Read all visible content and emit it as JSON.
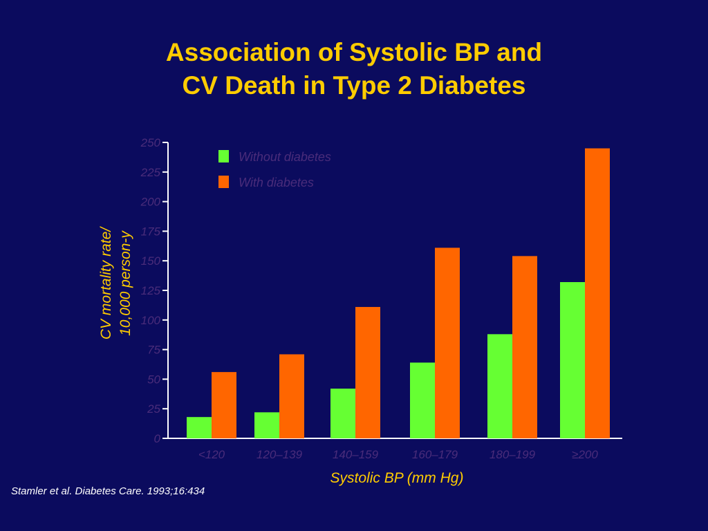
{
  "title_line1": "Association of Systolic BP and",
  "title_line2": "CV Death in Type 2 Diabetes",
  "source": "Stamler et al. Diabetes Care. 1993;16:434",
  "colors": {
    "background": "#0b0b5e",
    "title": "#ffcc00",
    "axis": "#ffffff",
    "tick_label": "#4a2c7a",
    "without_diabetes": "#66ff33",
    "with_diabetes": "#ff6600"
  },
  "chart_data": {
    "type": "bar",
    "title": "",
    "xlabel": "Systolic BP (mm Hg)",
    "ylabel_line1": "CV mortality rate/",
    "ylabel_line2": "10,000 person-y",
    "categories": [
      "<120",
      "120–139",
      "140–159",
      "160–179",
      "180–199",
      "≥200"
    ],
    "series": [
      {
        "name": "Without diabetes",
        "values": [
          18,
          22,
          42,
          64,
          88,
          132
        ]
      },
      {
        "name": "With diabetes",
        "values": [
          56,
          71,
          111,
          161,
          154,
          245
        ]
      }
    ],
    "ylim": [
      0,
      250
    ],
    "yticks": [
      "0",
      "25",
      "50",
      "75",
      "100",
      "125",
      "150",
      "175",
      "200",
      "225",
      "250"
    ],
    "legend_position": "top-left",
    "grid": false
  }
}
